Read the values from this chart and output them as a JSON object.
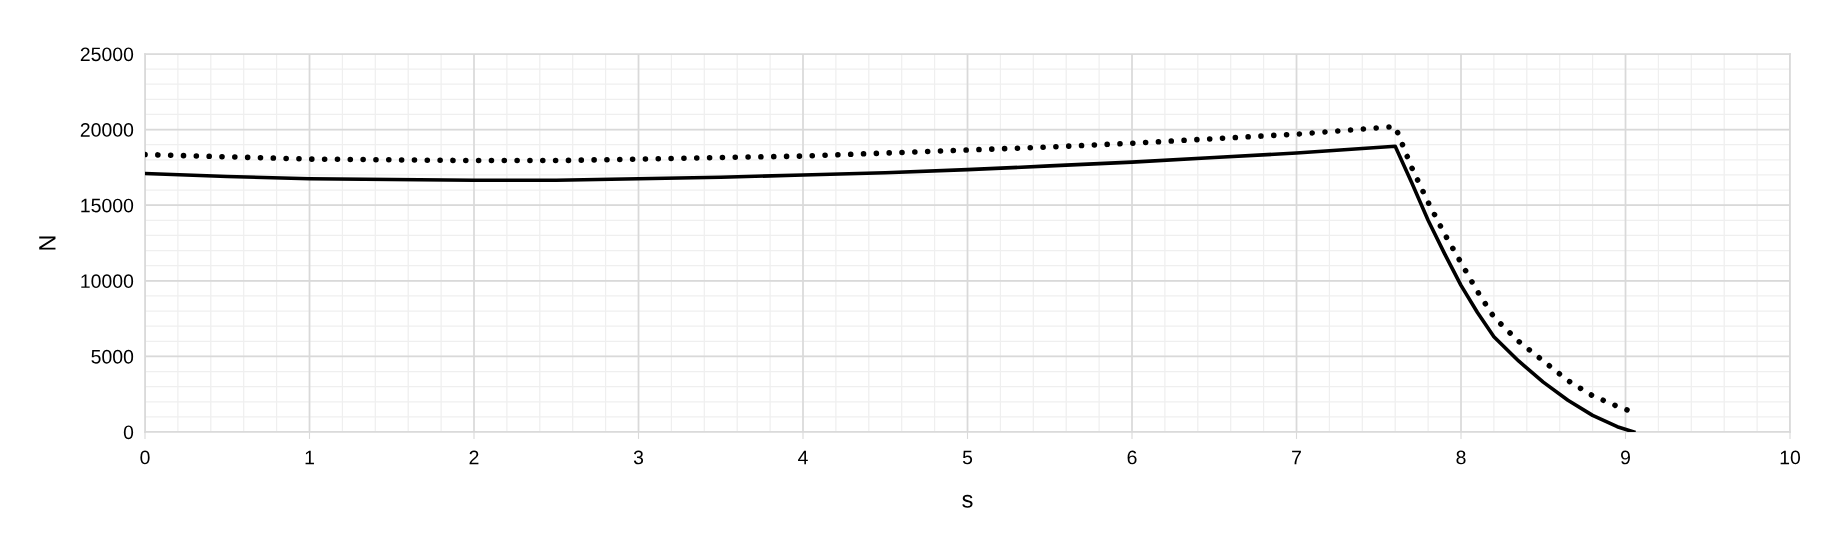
{
  "chart_data": {
    "type": "line",
    "xlabel": "s",
    "ylabel": "N",
    "xlim": [
      0,
      10
    ],
    "xticks": [
      0,
      1,
      2,
      3,
      4,
      5,
      6,
      7,
      8,
      9,
      10
    ],
    "ylim": [
      0,
      25000
    ],
    "yticks": [
      0,
      5000,
      10000,
      15000,
      20000,
      25000
    ],
    "grid": true,
    "series": [
      {
        "color": "#000000",
        "line_style": "solid",
        "x": [
          0,
          0.5,
          1,
          1.5,
          2,
          2.5,
          3,
          3.5,
          4,
          4.5,
          5,
          5.5,
          6,
          6.5,
          7,
          7.6,
          7.7,
          7.8,
          7.9,
          8,
          8.1,
          8.2,
          8.35,
          8.5,
          8.65,
          8.8,
          8.95,
          9.05
        ],
        "values": [
          17100,
          16900,
          16750,
          16700,
          16650,
          16650,
          16750,
          16850,
          17000,
          17150,
          17350,
          17600,
          17850,
          18150,
          18450,
          18900,
          16500,
          14000,
          11800,
          9700,
          7900,
          6300,
          4700,
          3300,
          2100,
          1100,
          350,
          0
        ]
      },
      {
        "color": "#000000",
        "line_style": "dotted",
        "x": [
          0,
          0.5,
          1,
          1.5,
          2,
          2.5,
          3,
          3.5,
          4,
          4.5,
          5,
          5.5,
          6,
          6.5,
          7,
          7.6,
          7.7,
          7.8,
          7.9,
          8,
          8.1,
          8.2,
          8.35,
          8.5,
          8.65,
          8.8,
          8.95,
          9.05
        ],
        "values": [
          18350,
          18200,
          18050,
          18000,
          17950,
          17950,
          18050,
          18150,
          18250,
          18450,
          18650,
          18850,
          19100,
          19400,
          19700,
          20200,
          17500,
          15200,
          13100,
          11200,
          9300,
          7600,
          6000,
          4700,
          3400,
          2400,
          1700,
          1300
        ]
      }
    ]
  }
}
